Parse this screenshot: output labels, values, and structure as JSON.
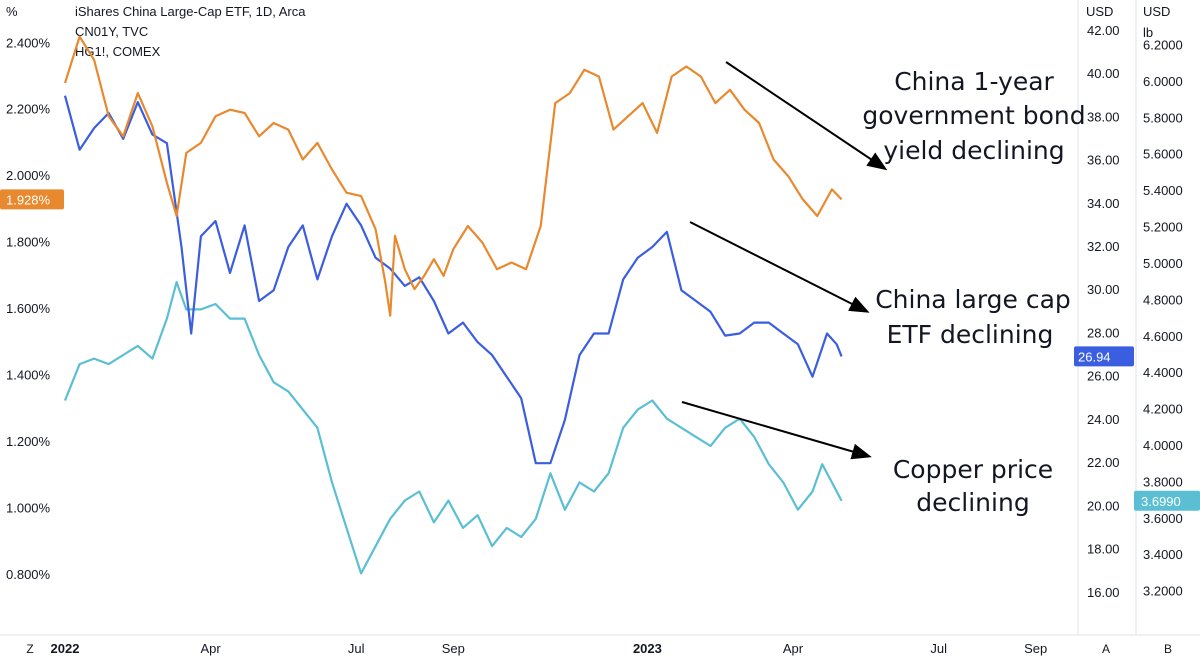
{
  "chart_data": {
    "type": "line",
    "legend": [
      "iShares China Large-Cap ETF, 1D, Arca",
      "CN01Y, TVC",
      "HG1!, COMEX"
    ],
    "x_ticks": [
      {
        "label": "2022",
        "t": 0.0,
        "bold": true
      },
      {
        "label": "Apr",
        "t": 3.0,
        "bold": false
      },
      {
        "label": "Jul",
        "t": 6.0,
        "bold": false
      },
      {
        "label": "Sep",
        "t": 8.0,
        "bold": false
      },
      {
        "label": "2023",
        "t": 12.0,
        "bold": true
      },
      {
        "label": "Apr",
        "t": 15.0,
        "bold": false
      },
      {
        "label": "Jul",
        "t": 18.0,
        "bold": false
      },
      {
        "label": "Sep",
        "t": 20.0,
        "bold": false
      }
    ],
    "axes": {
      "left": {
        "unit": "%",
        "ticks": [
          "2.400%",
          "2.200%",
          "2.000%",
          "1.800%",
          "1.600%",
          "1.400%",
          "1.200%",
          "1.000%",
          "0.800%"
        ],
        "range": [
          0.7,
          2.47
        ]
      },
      "mid": {
        "unit": "USD",
        "ticks": [
          "42.00",
          "40.00",
          "38.00",
          "36.00",
          "34.00",
          "32.00",
          "30.00",
          "28.00",
          "26.00",
          "24.00",
          "22.00",
          "20.00",
          "18.00",
          "16.00"
        ],
        "range": [
          15.3,
          42.5
        ]
      },
      "right": {
        "unit": "USD",
        "unit2": "lb",
        "ticks": [
          "6.2000",
          "6.0000",
          "5.8000",
          "5.6000",
          "5.4000",
          "5.2000",
          "5.0000",
          "4.8000",
          "4.6000",
          "4.4000",
          "4.2000",
          "4.0000",
          "3.8000",
          "3.6000",
          "3.4000",
          "3.2000"
        ],
        "range": [
          3.11,
          6.34
        ]
      }
    },
    "series": [
      {
        "name": "CN01Y, TVC",
        "color": "#e8892f",
        "axis": "left",
        "last_label": "1.928%",
        "points": [
          [
            0.0,
            2.28
          ],
          [
            0.3,
            2.42
          ],
          [
            0.6,
            2.35
          ],
          [
            0.9,
            2.18
          ],
          [
            1.2,
            2.12
          ],
          [
            1.5,
            2.25
          ],
          [
            1.8,
            2.15
          ],
          [
            2.1,
            1.98
          ],
          [
            2.3,
            1.88
          ],
          [
            2.5,
            2.07
          ],
          [
            2.8,
            2.1
          ],
          [
            3.1,
            2.18
          ],
          [
            3.4,
            2.2
          ],
          [
            3.7,
            2.19
          ],
          [
            4.0,
            2.12
          ],
          [
            4.3,
            2.16
          ],
          [
            4.6,
            2.14
          ],
          [
            4.9,
            2.05
          ],
          [
            5.2,
            2.1
          ],
          [
            5.5,
            2.02
          ],
          [
            5.8,
            1.95
          ],
          [
            6.1,
            1.94
          ],
          [
            6.4,
            1.84
          ],
          [
            6.6,
            1.68
          ],
          [
            6.7,
            1.58
          ],
          [
            6.8,
            1.82
          ],
          [
            7.0,
            1.72
          ],
          [
            7.2,
            1.66
          ],
          [
            7.4,
            1.7
          ],
          [
            7.6,
            1.75
          ],
          [
            7.8,
            1.7
          ],
          [
            8.0,
            1.78
          ],
          [
            8.3,
            1.85
          ],
          [
            8.6,
            1.8
          ],
          [
            8.9,
            1.72
          ],
          [
            9.2,
            1.74
          ],
          [
            9.5,
            1.72
          ],
          [
            9.8,
            1.85
          ],
          [
            10.1,
            2.22
          ],
          [
            10.4,
            2.25
          ],
          [
            10.7,
            2.32
          ],
          [
            11.0,
            2.3
          ],
          [
            11.3,
            2.14
          ],
          [
            11.6,
            2.18
          ],
          [
            11.9,
            2.22
          ],
          [
            12.2,
            2.13
          ],
          [
            12.5,
            2.3
          ],
          [
            12.8,
            2.33
          ],
          [
            13.1,
            2.3
          ],
          [
            13.4,
            2.22
          ],
          [
            13.7,
            2.26
          ],
          [
            14.0,
            2.2
          ],
          [
            14.3,
            2.16
          ],
          [
            14.6,
            2.05
          ],
          [
            14.9,
            2.0
          ],
          [
            15.2,
            1.93
          ],
          [
            15.5,
            1.88
          ],
          [
            15.8,
            1.96
          ],
          [
            16.0,
            1.93
          ]
        ]
      },
      {
        "name": "iShares China Large-Cap ETF, 1D, Arca",
        "color": "#3b5ee0",
        "axis": "mid",
        "last_label": "26.94",
        "points": [
          [
            0.0,
            39.0
          ],
          [
            0.3,
            36.5
          ],
          [
            0.6,
            37.5
          ],
          [
            0.9,
            38.2
          ],
          [
            1.2,
            37.0
          ],
          [
            1.5,
            38.7
          ],
          [
            1.8,
            37.2
          ],
          [
            2.1,
            36.8
          ],
          [
            2.4,
            32.0
          ],
          [
            2.6,
            28.0
          ],
          [
            2.8,
            32.5
          ],
          [
            3.1,
            33.2
          ],
          [
            3.4,
            30.8
          ],
          [
            3.7,
            33.0
          ],
          [
            4.0,
            29.5
          ],
          [
            4.3,
            30.0
          ],
          [
            4.6,
            32.0
          ],
          [
            4.9,
            33.0
          ],
          [
            5.2,
            30.5
          ],
          [
            5.5,
            32.5
          ],
          [
            5.8,
            34.0
          ],
          [
            6.1,
            33.0
          ],
          [
            6.4,
            31.5
          ],
          [
            6.7,
            31.0
          ],
          [
            7.0,
            30.2
          ],
          [
            7.3,
            30.6
          ],
          [
            7.6,
            29.5
          ],
          [
            7.9,
            28.0
          ],
          [
            8.2,
            28.5
          ],
          [
            8.5,
            27.6
          ],
          [
            8.8,
            27.0
          ],
          [
            9.1,
            26.0
          ],
          [
            9.4,
            25.0
          ],
          [
            9.7,
            22.0
          ],
          [
            10.0,
            22.0
          ],
          [
            10.3,
            24.0
          ],
          [
            10.6,
            27.0
          ],
          [
            10.9,
            28.0
          ],
          [
            11.2,
            28.0
          ],
          [
            11.5,
            30.5
          ],
          [
            11.8,
            31.5
          ],
          [
            12.1,
            32.0
          ],
          [
            12.4,
            32.7
          ],
          [
            12.7,
            30.0
          ],
          [
            13.0,
            29.5
          ],
          [
            13.3,
            29.0
          ],
          [
            13.6,
            27.9
          ],
          [
            13.9,
            28.0
          ],
          [
            14.2,
            28.5
          ],
          [
            14.5,
            28.5
          ],
          [
            14.8,
            28.0
          ],
          [
            15.1,
            27.5
          ],
          [
            15.4,
            26.0
          ],
          [
            15.7,
            28.0
          ],
          [
            15.9,
            27.5
          ],
          [
            16.0,
            26.94
          ]
        ]
      },
      {
        "name": "HG1!, COMEX",
        "color": "#5bbfd3",
        "axis": "right",
        "last_label": "3.6990",
        "points": [
          [
            0.0,
            4.25
          ],
          [
            0.3,
            4.45
          ],
          [
            0.6,
            4.48
          ],
          [
            0.9,
            4.45
          ],
          [
            1.2,
            4.5
          ],
          [
            1.5,
            4.55
          ],
          [
            1.8,
            4.48
          ],
          [
            2.1,
            4.7
          ],
          [
            2.3,
            4.9
          ],
          [
            2.5,
            4.75
          ],
          [
            2.8,
            4.75
          ],
          [
            3.1,
            4.78
          ],
          [
            3.4,
            4.7
          ],
          [
            3.7,
            4.7
          ],
          [
            4.0,
            4.5
          ],
          [
            4.3,
            4.35
          ],
          [
            4.6,
            4.3
          ],
          [
            4.9,
            4.2
          ],
          [
            5.2,
            4.1
          ],
          [
            5.5,
            3.8
          ],
          [
            5.8,
            3.55
          ],
          [
            6.1,
            3.3
          ],
          [
            6.4,
            3.45
          ],
          [
            6.7,
            3.6
          ],
          [
            7.0,
            3.7
          ],
          [
            7.3,
            3.75
          ],
          [
            7.6,
            3.58
          ],
          [
            7.9,
            3.7
          ],
          [
            8.2,
            3.55
          ],
          [
            8.5,
            3.62
          ],
          [
            8.8,
            3.45
          ],
          [
            9.1,
            3.55
          ],
          [
            9.4,
            3.5
          ],
          [
            9.7,
            3.6
          ],
          [
            10.0,
            3.85
          ],
          [
            10.3,
            3.65
          ],
          [
            10.6,
            3.8
          ],
          [
            10.9,
            3.75
          ],
          [
            11.2,
            3.85
          ],
          [
            11.5,
            4.1
          ],
          [
            11.8,
            4.2
          ],
          [
            12.1,
            4.25
          ],
          [
            12.4,
            4.15
          ],
          [
            12.7,
            4.1
          ],
          [
            13.0,
            4.05
          ],
          [
            13.3,
            4.0
          ],
          [
            13.6,
            4.1
          ],
          [
            13.9,
            4.15
          ],
          [
            14.2,
            4.05
          ],
          [
            14.5,
            3.9
          ],
          [
            14.8,
            3.8
          ],
          [
            15.1,
            3.65
          ],
          [
            15.4,
            3.75
          ],
          [
            15.6,
            3.9
          ],
          [
            15.8,
            3.8
          ],
          [
            16.0,
            3.699
          ]
        ]
      }
    ],
    "annotations": [
      {
        "lines": [
          "China 1-year",
          "government bond",
          "yield declining"
        ]
      },
      {
        "lines": [
          "China large cap",
          "ETF declining"
        ]
      },
      {
        "lines": [
          "Copper price",
          "declining"
        ]
      }
    ],
    "corner_labels": {
      "left": "Z",
      "mid": "A",
      "right": "B"
    },
    "grid": false
  }
}
